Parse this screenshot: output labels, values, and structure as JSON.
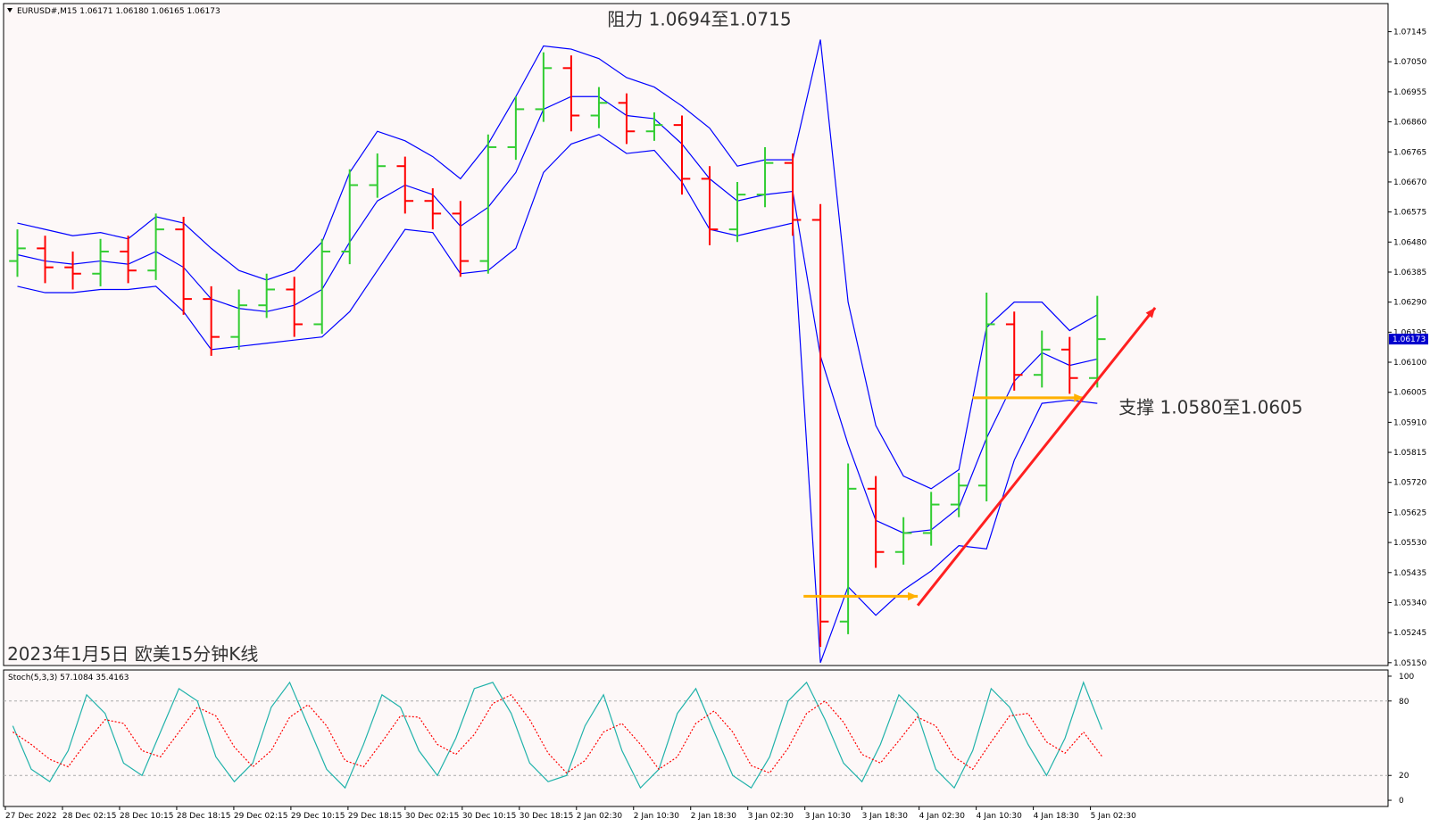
{
  "chart_data": [
    {
      "type": "ohlc",
      "title": "EURUSD#,M15  1.06171 1.06180 1.06165 1.06173",
      "annotations": [
        "阻力 1.0694至1.0715",
        "支撑 1.0580至1.0605",
        "2023年1月5日 欧美15分钟K线"
      ],
      "open": [
        1.0642,
        1.0646,
        1.064,
        1.0638,
        1.0645,
        1.0639,
        1.0652,
        1.063,
        1.0618,
        1.0628,
        1.0633,
        1.0622,
        1.0645,
        1.0666,
        1.0672,
        1.0661,
        1.0657,
        1.0642,
        1.0678,
        1.069,
        1.0703,
        1.0688,
        1.0692,
        1.0683,
        1.0685,
        1.0668,
        1.0652,
        1.0663,
        1.0673,
        1.0655,
        1.0528,
        1.057,
        1.055,
        1.0556,
        1.0565,
        1.0571,
        1.0622,
        1.0606,
        1.0614,
        1.0605
      ],
      "high": [
        1.0652,
        1.065,
        1.0645,
        1.0649,
        1.065,
        1.0657,
        1.0656,
        1.0634,
        1.0633,
        1.0638,
        1.0637,
        1.0649,
        1.0671,
        1.0676,
        1.0675,
        1.0665,
        1.0661,
        1.0682,
        1.0694,
        1.0708,
        1.0707,
        1.0697,
        1.0695,
        1.0689,
        1.0688,
        1.0672,
        1.0667,
        1.0678,
        1.0676,
        1.066,
        1.0578,
        1.0574,
        1.0561,
        1.0569,
        1.0575,
        1.0632,
        1.0626,
        1.062,
        1.0618,
        1.0631
      ],
      "low": [
        1.0637,
        1.0635,
        1.0633,
        1.0634,
        1.0635,
        1.0636,
        1.0625,
        1.0612,
        1.0614,
        1.0624,
        1.0618,
        1.0619,
        1.0641,
        1.0662,
        1.0657,
        1.0652,
        1.0637,
        1.0638,
        1.0674,
        1.0686,
        1.0683,
        1.0684,
        1.0679,
        1.068,
        1.0663,
        1.0647,
        1.0648,
        1.0659,
        1.065,
        1.052,
        1.0524,
        1.0545,
        1.0546,
        1.0552,
        1.0561,
        1.0566,
        1.0601,
        1.0602,
        1.06,
        1.0602
      ],
      "close": [
        1.0646,
        1.064,
        1.0638,
        1.0645,
        1.0639,
        1.0652,
        1.063,
        1.0618,
        1.0628,
        1.0633,
        1.0622,
        1.0645,
        1.0666,
        1.0672,
        1.0661,
        1.0657,
        1.0642,
        1.0678,
        1.069,
        1.0703,
        1.0688,
        1.0692,
        1.0683,
        1.0685,
        1.0668,
        1.0652,
        1.0663,
        1.0673,
        1.0655,
        1.0528,
        1.057,
        1.055,
        1.0556,
        1.0565,
        1.0571,
        1.0622,
        1.0606,
        1.0614,
        1.0605,
        1.06173
      ],
      "up_color": "#32cd32",
      "down_color": "#ff0000",
      "bands": {
        "color": "#0000ff",
        "upper": [
          1.0654,
          1.0652,
          1.065,
          1.0651,
          1.0649,
          1.0656,
          1.0654,
          1.0646,
          1.0639,
          1.0636,
          1.0639,
          1.0648,
          1.067,
          1.0683,
          1.068,
          1.0675,
          1.0668,
          1.0679,
          1.0694,
          1.071,
          1.0709,
          1.0706,
          1.07,
          1.0697,
          1.0691,
          1.0684,
          1.0672,
          1.0674,
          1.0674,
          1.0712,
          1.0629,
          1.059,
          1.0574,
          1.057,
          1.0576,
          1.0621,
          1.0629,
          1.0629,
          1.062,
          1.0625
        ],
        "middle": [
          1.0644,
          1.0642,
          1.0641,
          1.0642,
          1.0641,
          1.0645,
          1.064,
          1.063,
          1.0627,
          1.0626,
          1.0628,
          1.0633,
          1.0648,
          1.0661,
          1.0666,
          1.0663,
          1.0653,
          1.0659,
          1.067,
          1.069,
          1.0694,
          1.0694,
          1.0688,
          1.0687,
          1.0679,
          1.0668,
          1.0661,
          1.0663,
          1.0664,
          1.0612,
          1.0584,
          1.056,
          1.0556,
          1.0557,
          1.0564,
          1.0586,
          1.0604,
          1.0613,
          1.0609,
          1.0611
        ],
        "lower": [
          1.0634,
          1.0632,
          1.0632,
          1.0633,
          1.0633,
          1.0634,
          1.0626,
          1.0614,
          1.0615,
          1.0616,
          1.0617,
          1.0618,
          1.0626,
          1.0639,
          1.0652,
          1.0651,
          1.0638,
          1.0639,
          1.0646,
          1.067,
          1.0679,
          1.0682,
          1.0676,
          1.0677,
          1.0667,
          1.0652,
          1.065,
          1.0652,
          1.0654,
          1.0515,
          1.0539,
          1.053,
          1.0538,
          1.0544,
          1.0552,
          1.0551,
          1.0579,
          1.0597,
          1.0598,
          1.0597
        ]
      },
      "ylim": [
        1.05141,
        1.07234
      ],
      "yticks": [
        1.07145,
        {
          "value": 1.0705,
          "label": "1.07050"
        },
        1.06955,
        {
          "value": 1.0686,
          "label": "1.06860"
        },
        1.06765,
        {
          "value": 1.0667,
          "label": "1.06670"
        },
        1.06575,
        {
          "value": 1.0648,
          "label": "1.06480"
        },
        1.06385,
        {
          "value": 1.0629,
          "label": "1.06290"
        },
        1.06195,
        {
          "value": 1.061,
          "label": "1.06100"
        },
        1.06005,
        {
          "value": 1.0591,
          "label": "1.05910"
        },
        1.05815,
        {
          "value": 1.0572,
          "label": "1.05720"
        },
        1.05625,
        {
          "value": 1.0553,
          "label": "1.05530"
        },
        1.05435,
        {
          "value": 1.0534,
          "label": "1.05340"
        },
        1.05245,
        {
          "value": 1.0515,
          "label": "1.05150"
        }
      ]
    },
    {
      "type": "line",
      "title": "Stoch(5,3,3) 57.1084 35.4163",
      "series": [
        {
          "color": "#20b2aa",
          "values": [
            60,
            25,
            15,
            40,
            85,
            70,
            30,
            20,
            55,
            90,
            80,
            35,
            15,
            30,
            75,
            95,
            60,
            25,
            10,
            45,
            85,
            75,
            40,
            20,
            50,
            90,
            95,
            70,
            30,
            15,
            20,
            60,
            85,
            40,
            10,
            25,
            70,
            90,
            55,
            20,
            10,
            35,
            80,
            95,
            65,
            30,
            15,
            45,
            85,
            70,
            25,
            10,
            40,
            90,
            75,
            45,
            20,
            50,
            95,
            57.1084
          ]
        },
        {
          "color": "#ff0000",
          "dashed": true,
          "values": [
            55,
            45,
            33,
            27,
            47,
            65,
            62,
            40,
            35,
            55,
            75,
            68,
            43,
            27,
            40,
            67,
            77,
            60,
            32,
            27,
            47,
            68,
            67,
            45,
            37,
            53,
            78,
            85,
            65,
            38,
            22,
            32,
            55,
            62,
            45,
            25,
            35,
            62,
            72,
            55,
            28,
            22,
            42,
            70,
            80,
            63,
            37,
            30,
            48,
            67,
            60,
            35,
            25,
            47,
            68,
            70,
            47,
            38,
            55,
            35.4163
          ]
        }
      ],
      "ylim": [
        -5,
        105
      ],
      "yticks": [
        0,
        20,
        80,
        100
      ],
      "levels": [
        20,
        80
      ],
      "x_labels": [
        "27 Dec 2022",
        "28 Dec 02:15",
        "28 Dec 10:15",
        "28 Dec 18:15",
        "29 Dec 02:15",
        "29 Dec 10:15",
        "29 Dec 18:15",
        "30 Dec 02:15",
        "30 Dec 10:15",
        "30 Dec 18:15",
        "2 Jan 02:30",
        "2 Jan 10:30",
        "2 Jan 18:30",
        "3 Jan 02:30",
        "3 Jan 10:30",
        "3 Jan 18:30",
        "4 Jan 02:30",
        "4 Jan 10:30",
        "4 Jan 18:30",
        "5 Jan 02:30"
      ]
    }
  ]
}
